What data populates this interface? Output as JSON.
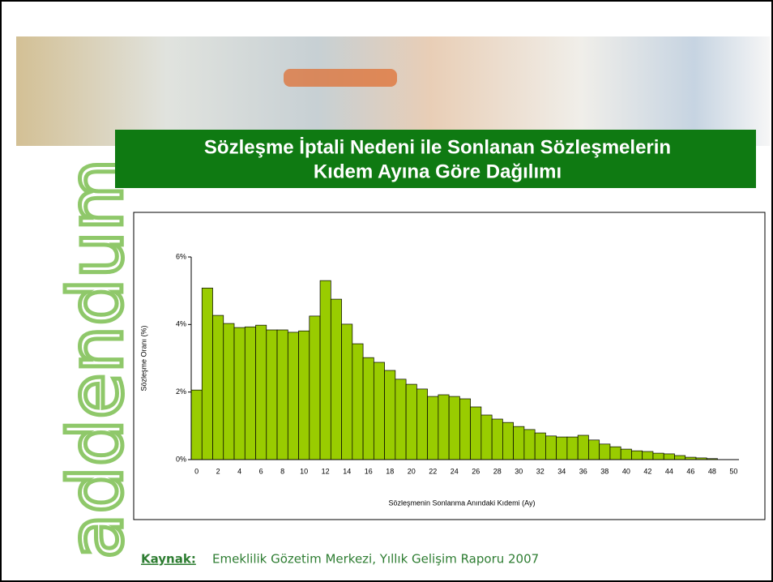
{
  "logo": "addendum",
  "chart_data": {
    "type": "bar",
    "title": [
      "Sözleşme İptali Nedeni ile Sonlanan Sözleşmelerin",
      "Kıdem  Ayına Göre Dağılımı"
    ],
    "x_label": "Sözleşmenin Sonlanma Anındaki Kıdemi  (Ay)",
    "y_label": "Sözleşme Oranı (%)",
    "source": {
      "label": "Kaynak:",
      "text": "Emeklilik Gözetim Merkezi, Yıllık Gelişim Raporu 2007"
    },
    "color": "#99cc00",
    "x": [
      0,
      1,
      2,
      3,
      4,
      5,
      6,
      7,
      8,
      9,
      10,
      11,
      12,
      13,
      14,
      15,
      16,
      17,
      18,
      19,
      20,
      21,
      22,
      23,
      24,
      25,
      26,
      27,
      28,
      29,
      30,
      31,
      32,
      33,
      34,
      35,
      36,
      37,
      38,
      39,
      40,
      41,
      42,
      43,
      44,
      45,
      46,
      47,
      48
    ],
    "values": [
      2.06,
      5.08,
      4.27,
      4.03,
      3.91,
      3.93,
      3.98,
      3.84,
      3.84,
      3.77,
      3.81,
      4.25,
      5.3,
      4.75,
      4.01,
      3.43,
      3.02,
      2.88,
      2.64,
      2.38,
      2.23,
      2.09,
      1.87,
      1.92,
      1.87,
      1.8,
      1.56,
      1.32,
      1.2,
      1.1,
      0.98,
      0.89,
      0.79,
      0.7,
      0.67,
      0.67,
      0.72,
      0.58,
      0.46,
      0.38,
      0.31,
      0.26,
      0.24,
      0.19,
      0.17,
      0.12,
      0.07,
      0.05,
      0.03
    ],
    "xlim": [
      -0.5,
      50.5
    ],
    "xticks": [
      0,
      2,
      4,
      6,
      8,
      10,
      12,
      14,
      16,
      18,
      20,
      22,
      24,
      26,
      28,
      30,
      32,
      34,
      36,
      38,
      40,
      42,
      44,
      46,
      48,
      50
    ],
    "ylim": [
      0,
      6
    ],
    "yticks": [
      {
        "value": 0,
        "label": "0%"
      },
      {
        "value": 2,
        "label": "2%"
      },
      {
        "value": 4,
        "label": "4%"
      },
      {
        "value": 6,
        "label": "6%"
      }
    ]
  }
}
